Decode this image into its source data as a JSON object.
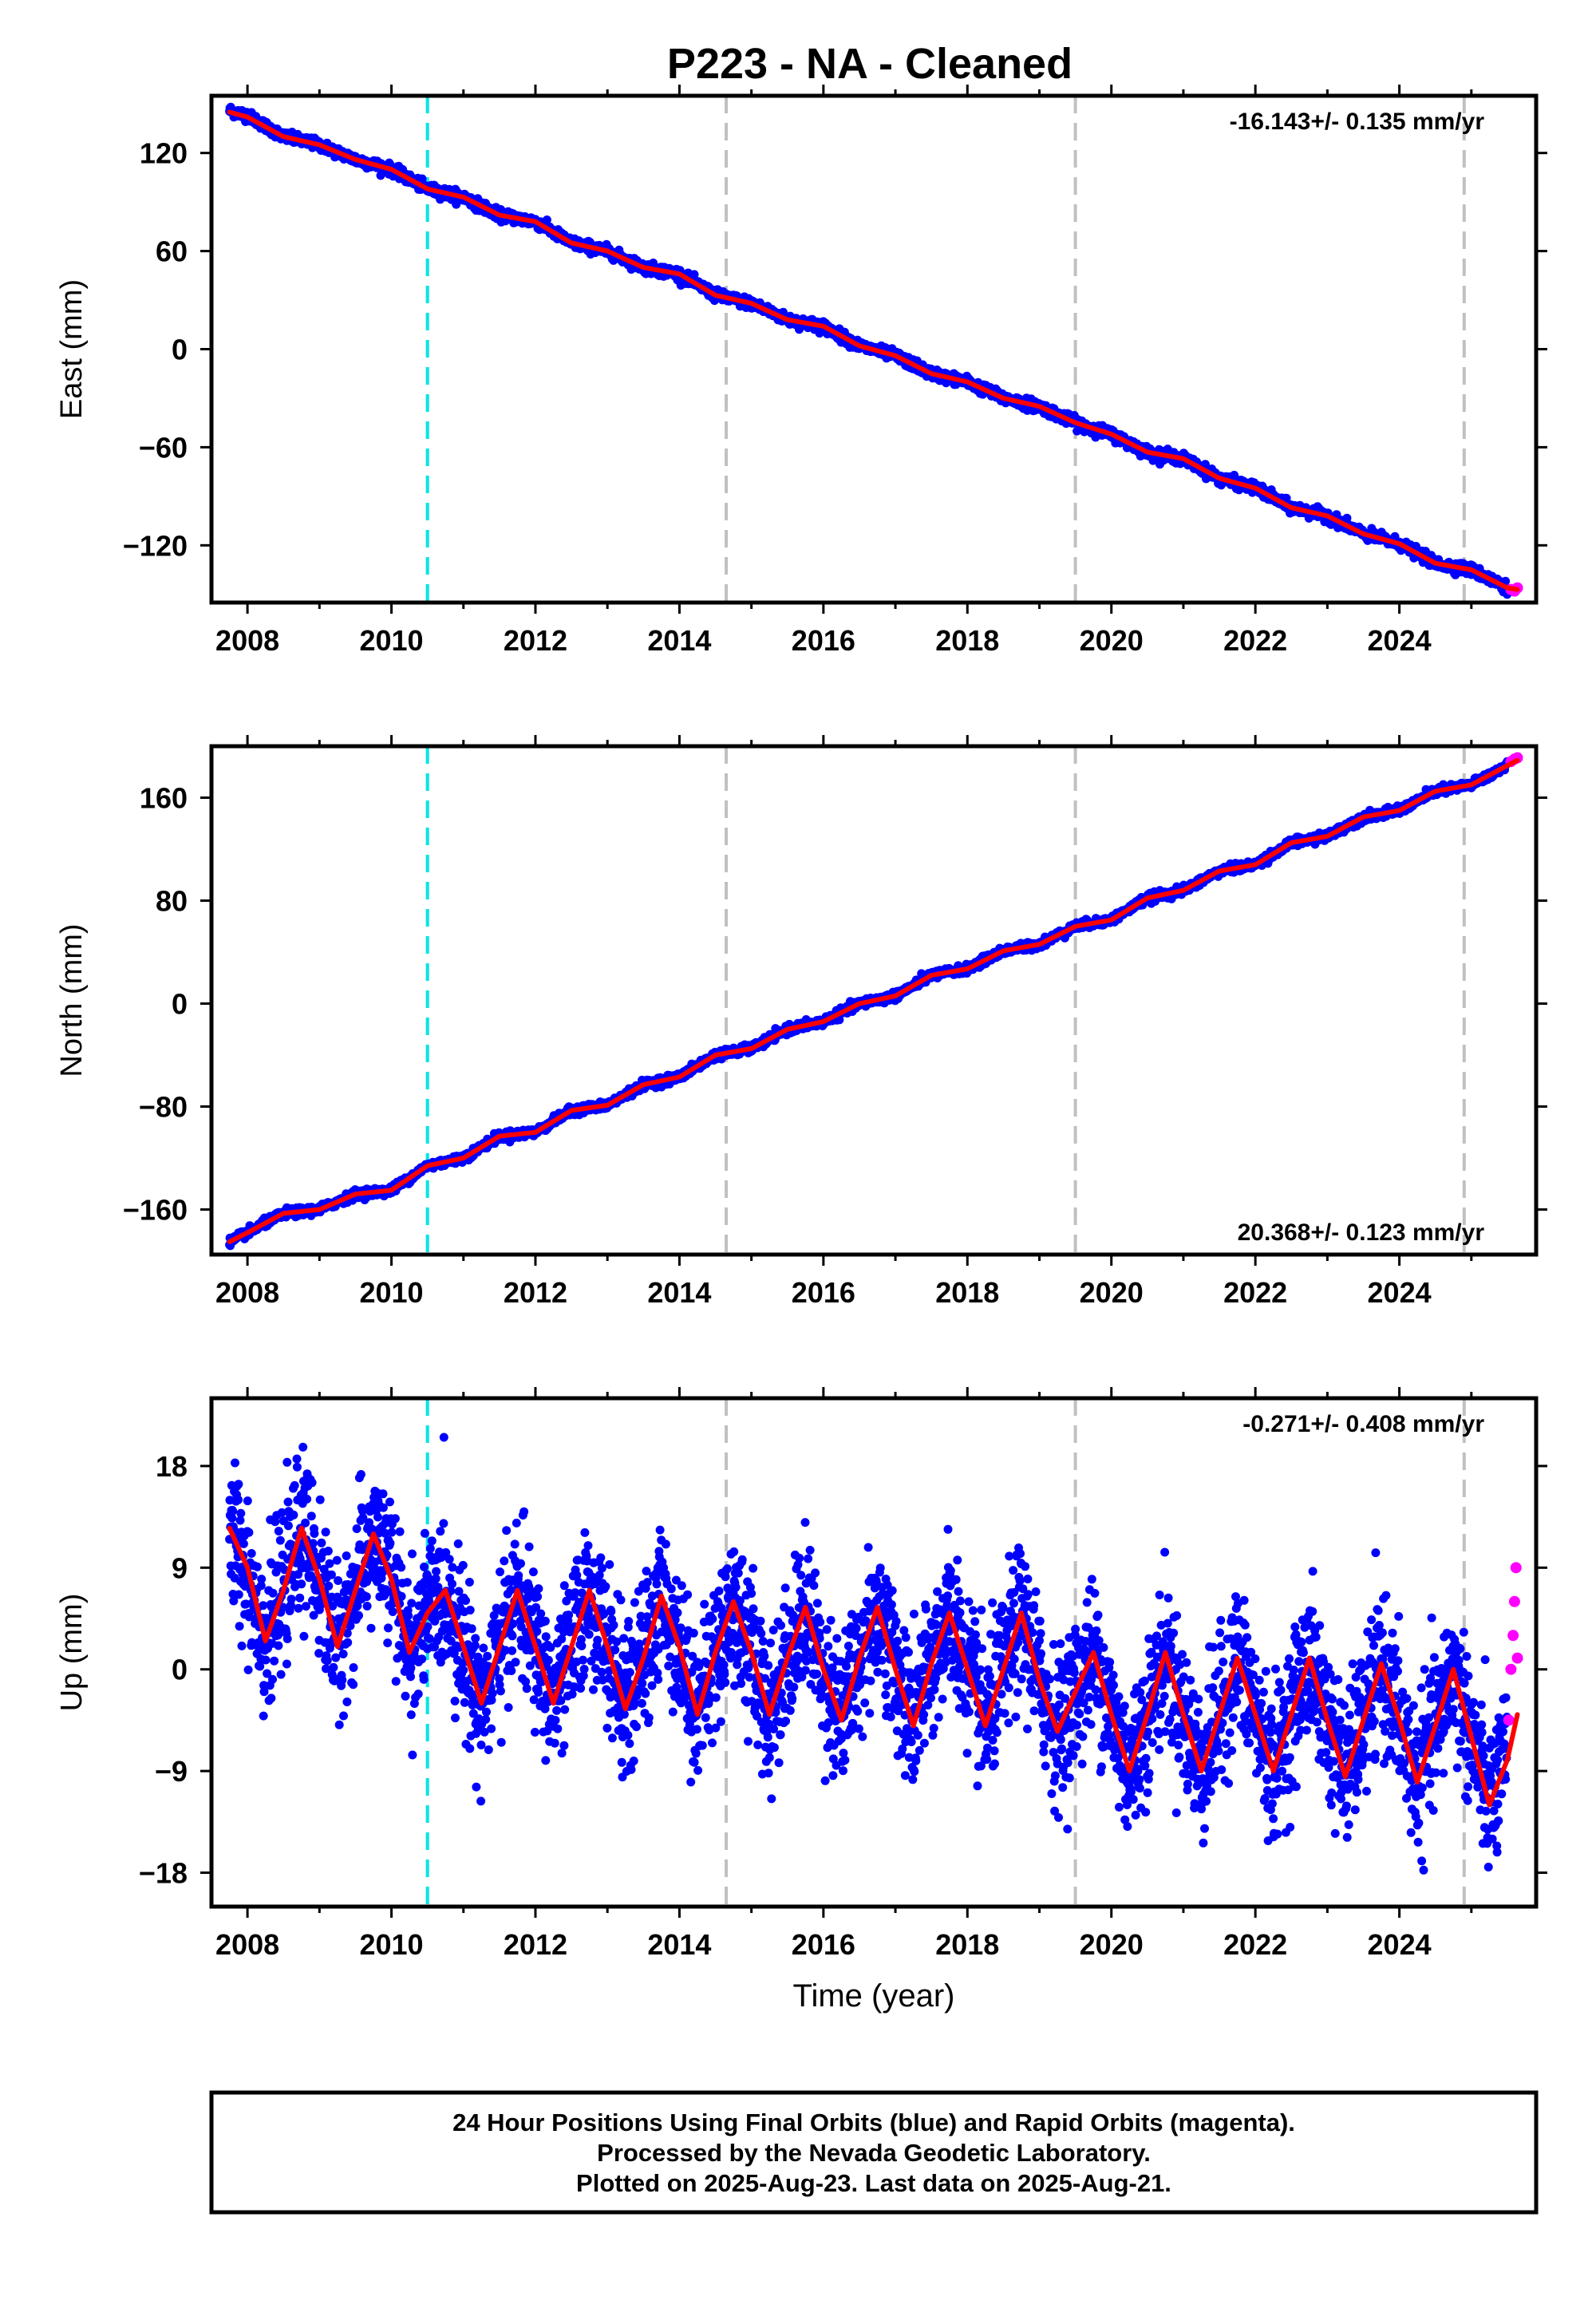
{
  "title": "P223  - NA - Cleaned",
  "footer": {
    "line1": "24 Hour Positions Using Final Orbits (blue) and Rapid Orbits (magenta).",
    "line2": "Processed by the Nevada Geodetic Laboratory.",
    "line3": "Plotted on 2025-Aug-23. Last data on 2025-Aug-21."
  },
  "colors": {
    "final_orbits": "#0000ff",
    "rapid_orbits": "#ff00ff",
    "model": "#ff0000",
    "equipment_change": "#00e5e5",
    "event_line": "#c0c0c0"
  },
  "chart_data": [
    {
      "type": "scatter",
      "name": "east",
      "ylabel": "East (mm)",
      "xlabel": "",
      "rate_label": "-16.143+/- 0.135 mm/yr",
      "xlim": [
        2007.5,
        2025.9
      ],
      "ylim": [
        -155,
        155
      ],
      "xticks": [
        2008,
        2010,
        2012,
        2014,
        2016,
        2018,
        2020,
        2022,
        2024
      ],
      "xtick_labels": [
        "2008",
        "2010",
        "2012",
        "2014",
        "2016",
        "2018",
        "2020",
        "2022",
        "2024"
      ],
      "yticks": [
        120,
        60,
        0,
        -60,
        -120
      ],
      "ytick_labels": [
        "120",
        "60",
        "0",
        "−60",
        "−120"
      ],
      "grid": false,
      "series": [
        {
          "role": "final_orbits",
          "color": "#0000ff",
          "x": [
            2007.75,
            2008.0,
            2008.5,
            2009.0,
            2009.5,
            2010.0,
            2010.5,
            2011.0,
            2011.5,
            2012.0,
            2012.5,
            2013.0,
            2013.5,
            2014.0,
            2014.5,
            2015.0,
            2015.5,
            2016.0,
            2016.5,
            2017.0,
            2017.5,
            2018.0,
            2018.5,
            2019.0,
            2019.5,
            2020.0,
            2020.5,
            2021.0,
            2021.5,
            2022.0,
            2022.5,
            2023.0,
            2023.5,
            2024.0,
            2024.5,
            2025.0,
            2025.5
          ],
          "y": [
            146,
            143,
            130,
            125,
            116,
            110,
            98,
            93,
            82,
            78,
            65,
            60,
            50,
            46,
            33,
            28,
            18,
            14,
            2,
            -4,
            -15,
            -20,
            -30,
            -35,
            -45,
            -52,
            -63,
            -67,
            -79,
            -85,
            -97,
            -102,
            -113,
            -119,
            -131,
            -135,
            -146
          ]
        },
        {
          "role": "rapid_orbits",
          "color": "#ff00ff",
          "x": [
            2025.55,
            2025.6,
            2025.64
          ],
          "y": [
            -147,
            -148,
            -146
          ]
        },
        {
          "role": "model",
          "color": "#ff0000",
          "x": [
            2007.75,
            2008.0,
            2008.5,
            2009.0,
            2009.5,
            2010.0,
            2010.5,
            2011.0,
            2011.5,
            2012.0,
            2012.5,
            2013.0,
            2013.5,
            2014.0,
            2014.5,
            2015.0,
            2015.5,
            2016.0,
            2016.5,
            2017.0,
            2017.5,
            2018.0,
            2018.5,
            2019.0,
            2019.5,
            2020.0,
            2020.5,
            2021.0,
            2021.5,
            2022.0,
            2022.5,
            2023.0,
            2023.5,
            2024.0,
            2024.5,
            2025.0,
            2025.5,
            2025.64
          ],
          "y": [
            145,
            142,
            130,
            125,
            116,
            110,
            98,
            93,
            82,
            78,
            65,
            60,
            50,
            46,
            33,
            28,
            18,
            14,
            2,
            -4,
            -15,
            -20,
            -30,
            -35,
            -45,
            -52,
            -63,
            -67,
            -79,
            -85,
            -97,
            -102,
            -113,
            -119,
            -131,
            -135,
            -146,
            -147
          ]
        }
      ],
      "event_lines": [
        {
          "x": 2010.5,
          "color": "#00e5e5"
        },
        {
          "x": 2014.65,
          "color": "#c0c0c0"
        },
        {
          "x": 2019.5,
          "color": "#c0c0c0"
        },
        {
          "x": 2024.9,
          "color": "#c0c0c0"
        }
      ],
      "rate_position": "top-right"
    },
    {
      "type": "scatter",
      "name": "north",
      "ylabel": "North (mm)",
      "xlabel": "",
      "rate_label": "20.368+/- 0.123 mm/yr",
      "xlim": [
        2007.5,
        2025.9
      ],
      "ylim": [
        -195,
        200
      ],
      "xticks": [
        2008,
        2010,
        2012,
        2014,
        2016,
        2018,
        2020,
        2022,
        2024
      ],
      "xtick_labels": [
        "2008",
        "2010",
        "2012",
        "2014",
        "2016",
        "2018",
        "2020",
        "2022",
        "2024"
      ],
      "yticks": [
        160,
        80,
        0,
        -80,
        -160
      ],
      "ytick_labels": [
        "160",
        "80",
        "0",
        "−80",
        "−160"
      ],
      "grid": false,
      "series": [
        {
          "role": "final_orbits",
          "color": "#0000ff",
          "x": [
            2007.75,
            2008.0,
            2008.5,
            2009.0,
            2009.5,
            2010.0,
            2010.5,
            2011.0,
            2011.5,
            2012.0,
            2012.5,
            2013.0,
            2013.5,
            2014.0,
            2014.5,
            2015.0,
            2015.5,
            2016.0,
            2016.5,
            2017.0,
            2017.5,
            2018.0,
            2018.5,
            2019.0,
            2019.5,
            2020.0,
            2020.5,
            2021.0,
            2021.5,
            2022.0,
            2022.5,
            2023.0,
            2023.5,
            2024.0,
            2024.5,
            2025.0,
            2025.5
          ],
          "y": [
            -185,
            -178,
            -163,
            -160,
            -148,
            -145,
            -126,
            -120,
            -103,
            -100,
            -83,
            -79,
            -63,
            -57,
            -40,
            -35,
            -20,
            -14,
            0,
            6,
            22,
            27,
            41,
            46,
            60,
            65,
            82,
            88,
            103,
            108,
            125,
            130,
            145,
            150,
            165,
            170,
            185
          ]
        },
        {
          "role": "rapid_orbits",
          "color": "#ff00ff",
          "x": [
            2025.55,
            2025.6,
            2025.64
          ],
          "y": [
            188,
            190,
            191
          ]
        },
        {
          "role": "model",
          "color": "#ff0000",
          "x": [
            2007.75,
            2008.0,
            2008.5,
            2009.0,
            2009.5,
            2010.0,
            2010.5,
            2011.0,
            2011.5,
            2012.0,
            2012.5,
            2013.0,
            2013.5,
            2014.0,
            2014.5,
            2015.0,
            2015.5,
            2016.0,
            2016.5,
            2017.0,
            2017.5,
            2018.0,
            2018.5,
            2019.0,
            2019.5,
            2020.0,
            2020.5,
            2021.0,
            2021.5,
            2022.0,
            2022.5,
            2023.0,
            2023.5,
            2024.0,
            2024.5,
            2025.0,
            2025.5,
            2025.64
          ],
          "y": [
            -185,
            -178,
            -163,
            -160,
            -148,
            -145,
            -126,
            -120,
            -103,
            -100,
            -83,
            -79,
            -63,
            -57,
            -40,
            -35,
            -20,
            -14,
            0,
            6,
            22,
            27,
            41,
            46,
            60,
            65,
            82,
            88,
            103,
            108,
            125,
            130,
            145,
            150,
            165,
            170,
            185,
            189
          ]
        }
      ],
      "event_lines": [
        {
          "x": 2010.5,
          "color": "#00e5e5"
        },
        {
          "x": 2014.65,
          "color": "#c0c0c0"
        },
        {
          "x": 2019.5,
          "color": "#c0c0c0"
        },
        {
          "x": 2024.9,
          "color": "#c0c0c0"
        }
      ],
      "rate_position": "bottom-right"
    },
    {
      "type": "scatter",
      "name": "up",
      "ylabel": "Up (mm)",
      "xlabel": "Time (year)",
      "rate_label": "-0.271+/- 0.408 mm/yr",
      "xlim": [
        2007.5,
        2025.9
      ],
      "ylim": [
        -21,
        24
      ],
      "xticks": [
        2008,
        2010,
        2012,
        2014,
        2016,
        2018,
        2020,
        2022,
        2024
      ],
      "xtick_labels": [
        "2008",
        "2010",
        "2012",
        "2014",
        "2016",
        "2018",
        "2020",
        "2022",
        "2024"
      ],
      "yticks": [
        18,
        9,
        0,
        -9,
        -18
      ],
      "ytick_labels": [
        "18",
        "9",
        "0",
        "−9",
        "−18"
      ],
      "grid": false,
      "series": [
        {
          "role": "final_orbits",
          "color": "#0000ff",
          "x": [
            2007.75,
            2008.0,
            2008.25,
            2008.5,
            2008.75,
            2009.0,
            2009.25,
            2009.5,
            2009.75,
            2010.0,
            2010.25,
            2010.5,
            2010.75,
            2011.0,
            2011.25,
            2011.5,
            2011.75,
            2012.0,
            2012.25,
            2012.5,
            2012.75,
            2013.0,
            2013.25,
            2013.5,
            2013.75,
            2014.0,
            2014.25,
            2014.5,
            2014.75,
            2015.0,
            2015.25,
            2015.5,
            2015.75,
            2016.0,
            2016.25,
            2016.5,
            2016.75,
            2017.0,
            2017.25,
            2017.5,
            2017.75,
            2018.0,
            2018.25,
            2018.5,
            2018.75,
            2019.0,
            2019.25,
            2019.5,
            2019.75,
            2020.0,
            2020.25,
            2020.5,
            2020.75,
            2021.0,
            2021.25,
            2021.5,
            2021.75,
            2022.0,
            2022.25,
            2022.5,
            2022.75,
            2023.0,
            2023.25,
            2023.5,
            2023.75,
            2024.0,
            2024.25,
            2024.5,
            2024.75,
            2025.0,
            2025.25,
            2025.5
          ],
          "y": [
            12.5,
            9,
            2.5,
            7,
            12.5,
            8,
            2,
            7,
            12,
            8,
            1.5,
            5,
            7,
            2,
            -3,
            2,
            7,
            2,
            -3,
            2,
            7,
            2,
            -3.5,
            1,
            6.5,
            2,
            -4,
            1.5,
            6,
            1.5,
            -4,
            1,
            5.5,
            0,
            -4.5,
            1,
            5.5,
            0,
            -5,
            0.5,
            5,
            0,
            -5,
            0,
            5,
            -1,
            -5.5,
            -2,
            1.5,
            -4,
            -9,
            -4,
            1.5,
            -4,
            -9,
            -4,
            1,
            -4,
            -9,
            -4,
            1,
            -4.5,
            -9.5,
            -4.5,
            0.5,
            -4.5,
            -10,
            -5,
            0,
            -6,
            -12,
            -8
          ]
        },
        {
          "role": "rapid_orbits",
          "color": "#ff00ff",
          "x": [
            2025.52,
            2025.55,
            2025.58,
            2025.6,
            2025.62,
            2025.64
          ],
          "y": [
            -4.5,
            0,
            3,
            6,
            9,
            1
          ]
        },
        {
          "role": "model",
          "color": "#ff0000",
          "x": [
            2007.75,
            2008.0,
            2008.25,
            2008.5,
            2008.75,
            2009.0,
            2009.25,
            2009.5,
            2009.75,
            2010.0,
            2010.25,
            2010.5,
            2010.75,
            2011.0,
            2011.25,
            2011.5,
            2011.75,
            2012.0,
            2012.25,
            2012.5,
            2012.75,
            2013.0,
            2013.25,
            2013.5,
            2013.75,
            2014.0,
            2014.25,
            2014.5,
            2014.75,
            2015.0,
            2015.25,
            2015.5,
            2015.75,
            2016.0,
            2016.25,
            2016.5,
            2016.75,
            2017.0,
            2017.25,
            2017.5,
            2017.75,
            2018.0,
            2018.25,
            2018.5,
            2018.75,
            2019.0,
            2019.25,
            2019.5,
            2019.75,
            2020.0,
            2020.25,
            2020.5,
            2020.75,
            2021.0,
            2021.25,
            2021.5,
            2021.75,
            2022.0,
            2022.25,
            2022.5,
            2022.75,
            2023.0,
            2023.25,
            2023.5,
            2023.75,
            2024.0,
            2024.25,
            2024.5,
            2024.75,
            2025.0,
            2025.25,
            2025.5,
            2025.64
          ],
          "y": [
            12.5,
            9,
            2.5,
            7,
            12.5,
            8,
            2,
            7,
            12,
            8,
            1.5,
            5,
            7,
            2,
            -3,
            2,
            7,
            2,
            -3,
            2,
            7,
            2,
            -3.5,
            1,
            6.5,
            2,
            -4,
            1.5,
            6,
            1.5,
            -4,
            1,
            5.5,
            0,
            -4.5,
            1,
            5.5,
            0,
            -5,
            0.5,
            5,
            0,
            -5,
            0,
            5,
            -1,
            -5.5,
            -2,
            1.5,
            -4,
            -9,
            -4,
            1.5,
            -4,
            -9,
            -4,
            1,
            -4,
            -9,
            -4,
            1,
            -4.5,
            -9.5,
            -4.5,
            0.5,
            -4.5,
            -10,
            -5,
            0,
            -6,
            -12,
            -8,
            -4
          ]
        }
      ],
      "event_lines": [
        {
          "x": 2010.5,
          "color": "#00e5e5"
        },
        {
          "x": 2014.65,
          "color": "#c0c0c0"
        },
        {
          "x": 2019.5,
          "color": "#c0c0c0"
        },
        {
          "x": 2024.9,
          "color": "#c0c0c0"
        }
      ],
      "rate_position": "top-right"
    }
  ]
}
